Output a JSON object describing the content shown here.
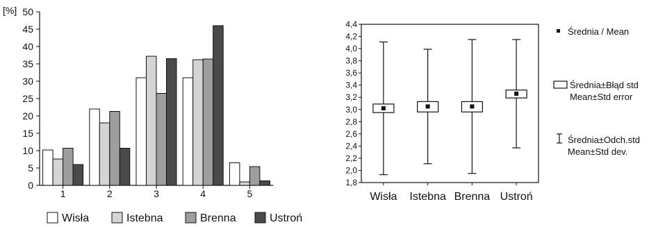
{
  "chart_data": [
    {
      "type": "bar",
      "ylabel": "[%]",
      "ylim": [
        0,
        50
      ],
      "yticks": [
        0,
        5,
        10,
        15,
        20,
        25,
        30,
        35,
        40,
        45,
        50
      ],
      "categories": [
        "1",
        "2",
        "3",
        "4",
        "5"
      ],
      "legend_position": "bottom",
      "grid": false,
      "series": [
        {
          "name": "Wisła",
          "color": "#ffffff",
          "values": [
            10.2,
            22.0,
            31.0,
            31.0,
            6.5
          ]
        },
        {
          "name": "Istebna",
          "color": "#d4d4d4",
          "values": [
            7.6,
            18.0,
            37.2,
            36.2,
            1.0
          ]
        },
        {
          "name": "Brenna",
          "color": "#9e9e9e",
          "values": [
            10.7,
            21.3,
            26.5,
            36.4,
            5.4
          ]
        },
        {
          "name": "Ustroń",
          "color": "#4a4a4a",
          "values": [
            6.0,
            10.7,
            36.5,
            46.0,
            1.3
          ]
        }
      ]
    },
    {
      "type": "box",
      "ylim": [
        1.8,
        4.4
      ],
      "yticks": [
        "1,8",
        "2,0",
        "2,2",
        "2,4",
        "2,6",
        "2,8",
        "3,0",
        "3,2",
        "3,4",
        "3,6",
        "3,8",
        "4,0",
        "4,2",
        "4,4"
      ],
      "categories": [
        "Wisła",
        "Istebna",
        "Brenna",
        "Ustroń"
      ],
      "grid": false,
      "legend_position": "right",
      "series": [
        {
          "category": "Wisła",
          "mean": 3.02,
          "se_low": 2.95,
          "se_high": 3.09,
          "sd_low": 1.93,
          "sd_high": 4.11
        },
        {
          "category": "Istebna",
          "mean": 3.05,
          "se_low": 2.96,
          "se_high": 3.13,
          "sd_low": 2.11,
          "sd_high": 3.99
        },
        {
          "category": "Brenna",
          "mean": 3.05,
          "se_low": 2.96,
          "se_high": 3.13,
          "sd_low": 1.95,
          "sd_high": 4.15
        },
        {
          "category": "Ustroń",
          "mean": 3.26,
          "se_low": 3.19,
          "se_high": 3.32,
          "sd_low": 2.37,
          "sd_high": 4.15
        }
      ],
      "legend": {
        "mean": "Średnia / Mean",
        "se_line1": "Średnia±Błąd std",
        "se_line2": "Mean±Std error",
        "sd_line1": "Średnia±Odch.std",
        "sd_line2": "Mean±Std dev."
      }
    }
  ]
}
